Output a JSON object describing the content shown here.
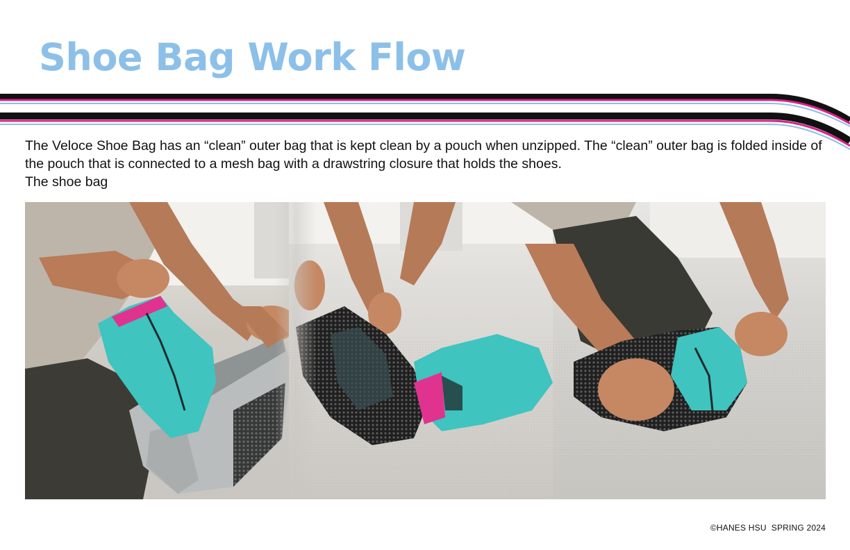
{
  "page": {
    "title": "Shoe Bag Work Flow",
    "description": "The Veloce Shoe Bag has an “clean” outer bag that is kept clean by a pouch when unzipped. The “clean” outer bag is folded inside of the pouch that is connected to a mesh bag with a drawstring closure that holds the shoes.",
    "caption": "The shoe bag",
    "footer": "©HANES HSU  SPRING 2024"
  },
  "colors": {
    "title": "#8cc0e8",
    "stripe_black": "#111111",
    "stripe_magenta": "#d8238a",
    "stripe_blue": "#8cc0e8",
    "bag_teal": "#3fc4c0",
    "bag_pink": "#e0338f",
    "bag_gray": "#b9bdbd",
    "mesh": "#2a2a2a",
    "skin": "#b97b58"
  },
  "photo": {
    "icon": "photo-image",
    "frames": [
      "frame-pull-out",
      "frame-folding",
      "frame-zipping"
    ]
  }
}
